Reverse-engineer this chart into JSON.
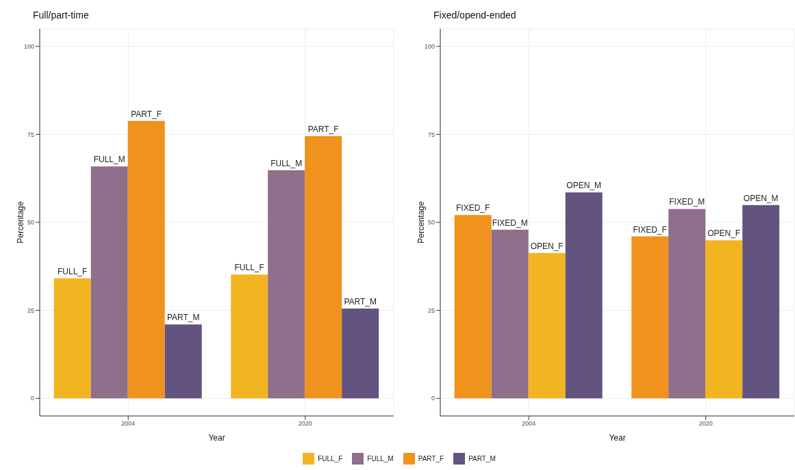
{
  "chart_data": [
    {
      "type": "bar",
      "title": "Full/part-time",
      "xlabel": "Year",
      "ylabel": "Percentage",
      "categories": [
        "2004",
        "2020"
      ],
      "ylim": [
        -5,
        105
      ],
      "yticks": [
        0,
        25,
        50,
        75,
        100
      ],
      "grid": true,
      "legend": "bottom",
      "series": [
        {
          "name": "FULL_F",
          "color": "#f2b521",
          "values": [
            34.1,
            35.2
          ]
        },
        {
          "name": "FULL_M",
          "color": "#8f6f8b",
          "values": [
            65.9,
            64.8
          ]
        },
        {
          "name": "PART_F",
          "color": "#f0921e",
          "values": [
            78.8,
            74.5
          ]
        },
        {
          "name": "PART_M",
          "color": "#63537f",
          "values": [
            21.0,
            25.5
          ]
        }
      ]
    },
    {
      "type": "bar",
      "title": "Fixed/opend-ended",
      "xlabel": "Year",
      "ylabel": "Percentage",
      "categories": [
        "2004",
        "2020"
      ],
      "ylim": [
        -5,
        105
      ],
      "yticks": [
        0,
        25,
        50,
        75,
        100
      ],
      "grid": true,
      "series": [
        {
          "name": "FIXED_F",
          "color": "#f0921e",
          "values": [
            52.1,
            46.0
          ]
        },
        {
          "name": "FIXED_M",
          "color": "#8f6f8b",
          "values": [
            47.9,
            53.8
          ]
        },
        {
          "name": "OPEN_F",
          "color": "#f2b521",
          "values": [
            41.3,
            44.9
          ]
        },
        {
          "name": "OPEN_M",
          "color": "#63537f",
          "values": [
            58.5,
            54.9
          ]
        }
      ]
    }
  ]
}
